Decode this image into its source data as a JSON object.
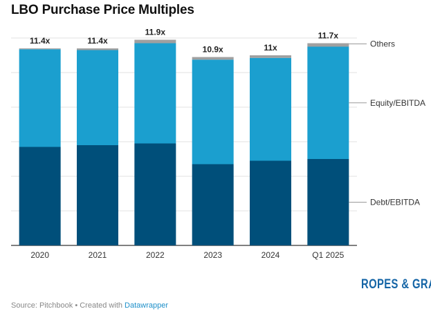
{
  "title": "LBO Purchase Price Multiples",
  "footer": {
    "source": "Source: Pitchbook • Created with ",
    "tool": "Datawrapper"
  },
  "logo": "ROPES & GRAY",
  "chart_data": {
    "type": "bar",
    "stacked": true,
    "categories": [
      "2020",
      "2021",
      "2022",
      "2023",
      "2024",
      "Q1 2025"
    ],
    "series": [
      {
        "name": "Debt/EBITDA",
        "color": "#004f7a",
        "values": [
          5.7,
          5.8,
          5.9,
          4.7,
          4.9,
          5.0
        ]
      },
      {
        "name": "Equity/EBITDA",
        "color": "#1b9fcf",
        "values": [
          5.65,
          5.5,
          5.8,
          6.05,
          5.95,
          6.5
        ]
      },
      {
        "name": "Others",
        "color": "#a0a0a0",
        "values": [
          0.05,
          0.1,
          0.2,
          0.15,
          0.15,
          0.2
        ]
      }
    ],
    "totals": [
      "11.4x",
      "11.4x",
      "11.9x",
      "10.9x",
      "11x",
      "11.7x"
    ],
    "ylim": [
      0,
      14
    ],
    "grid": true,
    "legend": "right, inline labels"
  }
}
